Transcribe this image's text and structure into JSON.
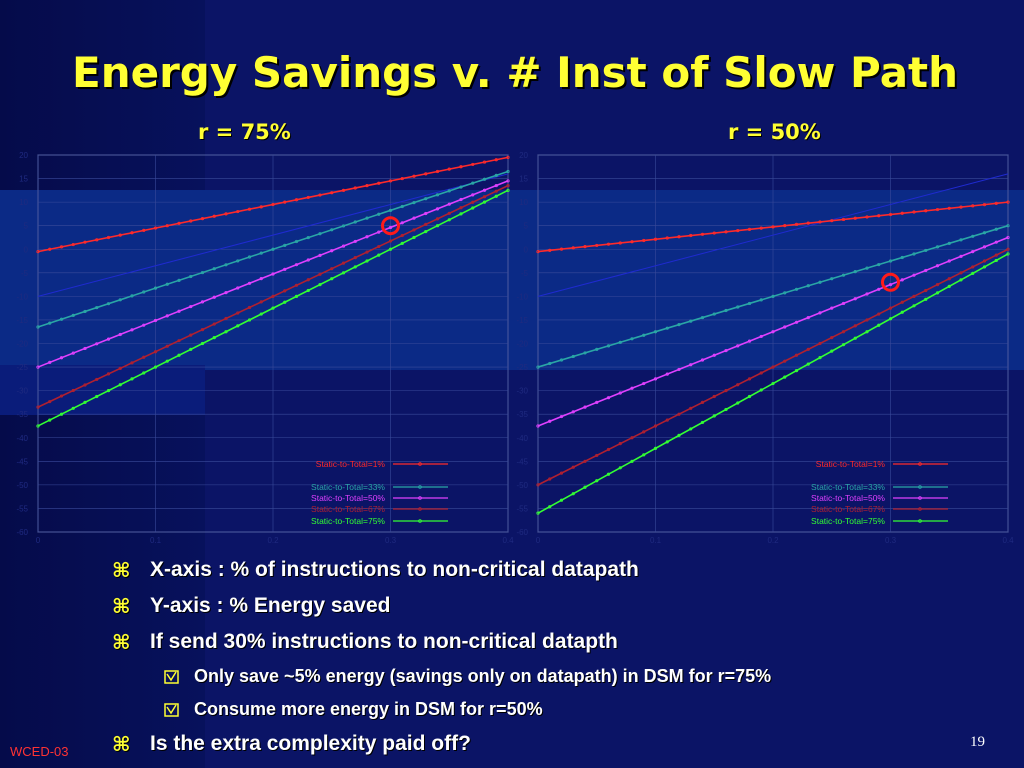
{
  "title": "Energy Savings v. # Inst of Slow Path",
  "charts": [
    {
      "subtitle": "r = 75%"
    },
    {
      "subtitle": "r = 50%"
    }
  ],
  "chart_data": [
    {
      "type": "line",
      "title": "r = 75%",
      "xlim": [
        0,
        0.4
      ],
      "ylim": [
        -60,
        20
      ],
      "xticks": [
        "0",
        "0.1",
        "0.2",
        "0.3",
        "0.4"
      ],
      "yticks": [
        "20",
        "15",
        "10",
        "5",
        "0",
        "-5",
        "-10",
        "-15",
        "-20",
        "-25",
        "-30",
        "-35",
        "-40",
        "-45",
        "-50",
        "-55",
        "-60"
      ],
      "grid": true,
      "legend_position": "bottom-right",
      "series": [
        {
          "name": "Static-to-Total=1%",
          "color": "#ff2a2a",
          "x": [
            0,
            0.4
          ],
          "y": [
            -0.5,
            19.5
          ]
        },
        {
          "name": "Static-to-Total=33%",
          "color": "#2aa6a6",
          "x": [
            0,
            0.4
          ],
          "y": [
            -16.5,
            16.5
          ]
        },
        {
          "name": "Static-to-Total=50%",
          "color": "#e040ff",
          "x": [
            0,
            0.4
          ],
          "y": [
            -25,
            14.5
          ]
        },
        {
          "name": "Static-to-Total=67%",
          "color": "#b02030",
          "x": [
            0,
            0.4
          ],
          "y": [
            -33.5,
            13.5
          ]
        },
        {
          "name": "Static-to-Total=75%",
          "color": "#33ff33",
          "x": [
            0,
            0.4
          ],
          "y": [
            -37.5,
            12.5
          ]
        }
      ],
      "marker": {
        "x": 0.3,
        "y": 5
      }
    },
    {
      "type": "line",
      "title": "r = 50%",
      "xlim": [
        0,
        0.4
      ],
      "ylim": [
        -60,
        20
      ],
      "xticks": [
        "0",
        "0.1",
        "0.2",
        "0.3",
        "0.4"
      ],
      "yticks": [
        "20",
        "15",
        "10",
        "5",
        "0",
        "-5",
        "-10",
        "-15",
        "-20",
        "-25",
        "-30",
        "-35",
        "-40",
        "-45",
        "-50",
        "-55",
        "-60"
      ],
      "grid": true,
      "legend_position": "bottom-right",
      "series": [
        {
          "name": "Static-to-Total=1%",
          "color": "#ff2a2a",
          "x": [
            0,
            0.4
          ],
          "y": [
            -0.5,
            10
          ]
        },
        {
          "name": "Static-to-Total=33%",
          "color": "#2aa6a6",
          "x": [
            0,
            0.4
          ],
          "y": [
            -25,
            5
          ]
        },
        {
          "name": "Static-to-Total=50%",
          "color": "#e040ff",
          "x": [
            0,
            0.4
          ],
          "y": [
            -37.5,
            2.5
          ]
        },
        {
          "name": "Static-to-Total=67%",
          "color": "#b02030",
          "x": [
            0,
            0.4
          ],
          "y": [
            -50,
            0
          ]
        },
        {
          "name": "Static-to-Total=75%",
          "color": "#33ff33",
          "x": [
            0,
            0.4
          ],
          "y": [
            -56,
            -1
          ]
        }
      ],
      "marker": {
        "x": 0.3,
        "y": -7
      }
    }
  ],
  "bullets": [
    {
      "level": 1,
      "text": "X-axis : % of instructions to non-critical datapath"
    },
    {
      "level": 1,
      "text": "Y-axis : % Energy saved"
    },
    {
      "level": 1,
      "text": "If send 30% instructions to non-critical datapth"
    },
    {
      "level": 2,
      "text": "Only save ~5% energy (savings only on datapath) in DSM for r=75%"
    },
    {
      "level": 2,
      "text": "Consume more energy in DSM for r=50%"
    },
    {
      "level": 1,
      "text": "Is the extra complexity paid off?"
    }
  ],
  "bullet_glyph": "⌘",
  "footer_left": "WCED-03",
  "page_number": "19"
}
